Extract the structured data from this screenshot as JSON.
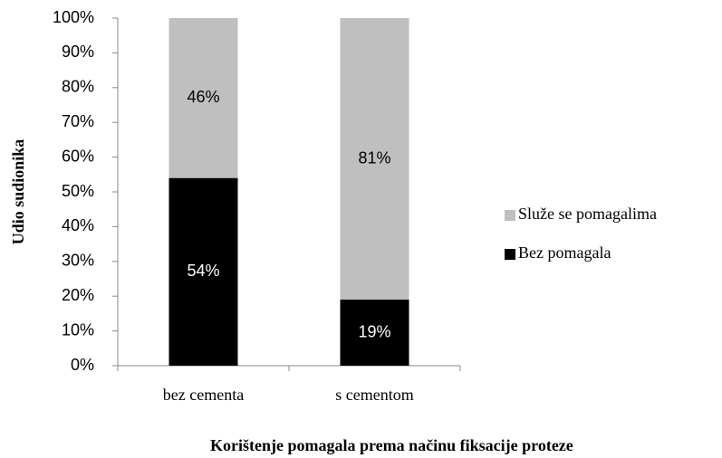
{
  "chart_data": {
    "type": "stacked_bar",
    "categories": [
      "bez cementa",
      "s cementom"
    ],
    "series": [
      {
        "name": "Bez pomagala",
        "color": "#000000",
        "values": [
          54,
          19
        ],
        "value_labels": [
          "54%",
          "19%"
        ]
      },
      {
        "name": "Služe se pomagalima",
        "color": "#bfbfbf",
        "values": [
          46,
          81
        ],
        "value_labels": [
          "46%",
          "81%"
        ]
      }
    ],
    "ylim": [
      0,
      100
    ],
    "yticks": [
      {
        "value": 0,
        "label": "0%"
      },
      {
        "value": 10,
        "label": "10%"
      },
      {
        "value": 20,
        "label": "20%"
      },
      {
        "value": 30,
        "label": "30%"
      },
      {
        "value": 40,
        "label": "40%"
      },
      {
        "value": 50,
        "label": "50%"
      },
      {
        "value": 60,
        "label": "60%"
      },
      {
        "value": 70,
        "label": "70%"
      },
      {
        "value": 80,
        "label": "80%"
      },
      {
        "value": 90,
        "label": "90%"
      },
      {
        "value": 100,
        "label": "100%"
      }
    ],
    "y_label": "Udio sudionika",
    "x_label": "Korištenje pomagala prema načinu fiksacije proteze",
    "legend": "right"
  }
}
